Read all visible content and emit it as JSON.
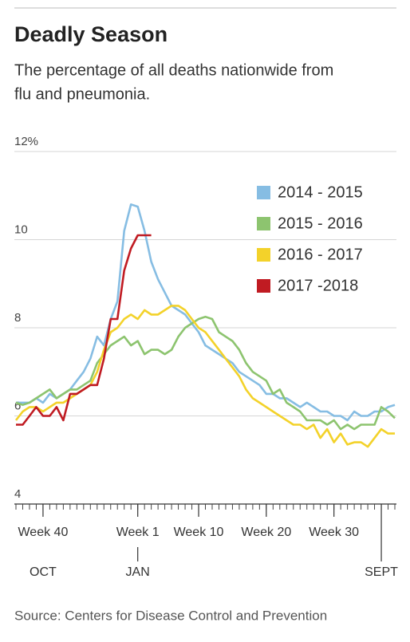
{
  "chart_data": {
    "type": "line",
    "title": "Deadly Season",
    "subtitle": [
      "The percentage of all deaths nationwide from",
      "flu and pneumonia."
    ],
    "source": "Source:  Centers for Disease Control and Prevention",
    "x": [
      -4,
      -3,
      -2,
      -1,
      0,
      1,
      2,
      3,
      4,
      5,
      6,
      7,
      8,
      9,
      10,
      11,
      12,
      13,
      14,
      15,
      16,
      17,
      18,
      19,
      20,
      21,
      22,
      23,
      24,
      25,
      26,
      27,
      28,
      29,
      30,
      31,
      32,
      33,
      34,
      35,
      36,
      37,
      38,
      39,
      40,
      41,
      42,
      43,
      44,
      45,
      46,
      47,
      48,
      49,
      50,
      51,
      52
    ],
    "xlim": [
      -4,
      52
    ],
    "xticks": [
      {
        "value": 0,
        "label": "Week 40"
      },
      {
        "value": 14,
        "label": "Week 1"
      },
      {
        "value": 23,
        "label": "Week 10"
      },
      {
        "value": 33,
        "label": "Week 20"
      },
      {
        "value": 43,
        "label": "Week 30"
      }
    ],
    "month_ticks": [
      {
        "value": 0,
        "label": "OCT"
      },
      {
        "value": 14,
        "label": "JAN"
      },
      {
        "value": 50,
        "label": "SEPT"
      }
    ],
    "ylim": [
      4,
      12
    ],
    "yticks": [
      4,
      6,
      8,
      10,
      {
        "value": 12,
        "label": "12%"
      }
    ],
    "grid": true,
    "legend": "upper right",
    "series": [
      {
        "name": "2014 - 2015",
        "color": "#86bde3",
        "values": [
          6.3,
          6.3,
          6.3,
          6.4,
          6.3,
          6.5,
          6.4,
          6.5,
          6.6,
          6.8,
          7.0,
          7.3,
          7.8,
          7.6,
          8.2,
          8.6,
          10.2,
          10.8,
          10.75,
          10.2,
          9.5,
          9.1,
          8.8,
          8.5,
          8.4,
          8.3,
          8.1,
          7.9,
          7.6,
          7.5,
          7.4,
          7.3,
          7.2,
          7.0,
          6.9,
          6.8,
          6.7,
          6.5,
          6.5,
          6.4,
          6.4,
          6.3,
          6.2,
          6.3,
          6.2,
          6.1,
          6.1,
          6.0,
          6.0,
          5.9,
          6.1,
          6.0,
          6.0,
          6.1,
          6.1,
          6.2,
          6.25
        ]
      },
      {
        "name": "2015 - 2016",
        "color": "#8dc46f",
        "values": [
          6.3,
          6.25,
          6.3,
          6.4,
          6.5,
          6.6,
          6.4,
          6.5,
          6.6,
          6.6,
          6.7,
          6.8,
          7.2,
          7.4,
          7.6,
          7.7,
          7.8,
          7.6,
          7.7,
          7.4,
          7.5,
          7.5,
          7.4,
          7.5,
          7.8,
          8.0,
          8.1,
          8.2,
          8.25,
          8.2,
          7.9,
          7.8,
          7.7,
          7.5,
          7.2,
          7.0,
          6.9,
          6.8,
          6.5,
          6.6,
          6.3,
          6.2,
          6.1,
          5.9,
          5.9,
          5.9,
          5.8,
          5.9,
          5.7,
          5.8,
          5.7,
          5.8,
          5.8,
          5.8,
          6.2,
          6.1,
          5.95
        ]
      },
      {
        "name": "2016 - 2017",
        "color": "#f3d22a",
        "values": [
          5.9,
          6.1,
          6.2,
          6.2,
          6.1,
          6.2,
          6.3,
          6.3,
          6.4,
          6.5,
          6.6,
          6.7,
          7.0,
          7.5,
          7.9,
          8.0,
          8.2,
          8.3,
          8.2,
          8.4,
          8.3,
          8.3,
          8.4,
          8.5,
          8.5,
          8.4,
          8.2,
          8.0,
          7.9,
          7.7,
          7.5,
          7.3,
          7.1,
          6.9,
          6.6,
          6.4,
          6.3,
          6.2,
          6.1,
          6.0,
          5.9,
          5.8,
          5.8,
          5.7,
          5.8,
          5.5,
          5.7,
          5.4,
          5.6,
          5.35,
          5.4,
          5.4,
          5.3,
          5.5,
          5.7,
          5.6,
          5.6
        ]
      },
      {
        "name": "2017 -2018",
        "color": "#c01b22",
        "values": [
          5.8,
          5.8,
          6.0,
          6.2,
          6.0,
          6.0,
          6.2,
          5.9,
          6.5,
          6.5,
          6.6,
          6.7,
          6.7,
          7.3,
          8.2,
          8.2,
          9.3,
          9.8,
          10.1,
          10.1,
          10.1,
          null,
          null,
          null,
          null,
          null,
          null,
          null,
          null,
          null,
          null,
          null,
          null,
          null,
          null,
          null,
          null,
          null,
          null,
          null,
          null,
          null,
          null,
          null,
          null,
          null,
          null,
          null,
          null,
          null,
          null,
          null,
          null,
          null,
          null,
          null,
          null
        ]
      }
    ]
  }
}
